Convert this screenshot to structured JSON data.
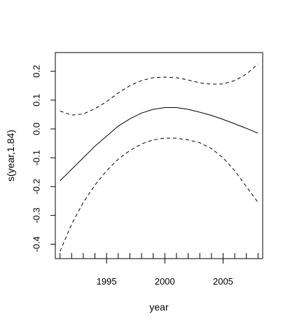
{
  "chart_data": {
    "type": "line",
    "title": "",
    "xlabel": "year",
    "ylabel": "s(year,1.84)",
    "xlim": [
      1990.6,
      2008.4
    ],
    "ylim": [
      -0.45,
      0.265
    ],
    "x_ticks": [
      1995,
      2000,
      2005
    ],
    "x_tick_labels": [
      "1995",
      "2000",
      "2005"
    ],
    "y_ticks": [
      -0.4,
      -0.3,
      -0.2,
      -0.1,
      0.0,
      0.1,
      0.2
    ],
    "y_tick_labels": [
      "-0.4",
      "-0.3",
      "-0.2",
      "-0.1",
      "0.0",
      "0.1",
      "0.2"
    ],
    "rug": [
      1991,
      1992,
      1993,
      1994,
      1995,
      1996,
      1997,
      1998,
      1999,
      2000,
      2001,
      2002,
      2003,
      2004,
      2005,
      2006,
      2007,
      2008
    ],
    "grid": false,
    "series": [
      {
        "style": "solid",
        "x": [
          1991,
          1992,
          1993,
          1994,
          1995,
          1996,
          1997,
          1998,
          1999,
          2000,
          2001,
          2002,
          2003,
          2004,
          2005,
          2006,
          2007,
          2008
        ],
        "y": [
          -0.18,
          -0.14,
          -0.1,
          -0.06,
          -0.025,
          0.01,
          0.035,
          0.055,
          0.068,
          0.074,
          0.074,
          0.068,
          0.058,
          0.047,
          0.033,
          0.018,
          0.002,
          -0.015
        ]
      },
      {
        "style": "dashed",
        "x": [
          1991,
          1992,
          1993,
          1994,
          1995,
          1996,
          1997,
          1998,
          1999,
          2000,
          2001,
          2002,
          2003,
          2004,
          2005,
          2006,
          2007,
          2008
        ],
        "y": [
          0.062,
          0.048,
          0.052,
          0.07,
          0.095,
          0.125,
          0.15,
          0.168,
          0.178,
          0.18,
          0.178,
          0.17,
          0.16,
          0.155,
          0.156,
          0.168,
          0.19,
          0.225
        ]
      },
      {
        "style": "dashed",
        "x": [
          1991,
          1992,
          1993,
          1994,
          1995,
          1996,
          1997,
          1998,
          1999,
          2000,
          2001,
          2002,
          2003,
          2004,
          2005,
          2006,
          2007,
          2008
        ],
        "y": [
          -0.425,
          -0.33,
          -0.255,
          -0.195,
          -0.145,
          -0.105,
          -0.075,
          -0.052,
          -0.038,
          -0.032,
          -0.032,
          -0.038,
          -0.048,
          -0.068,
          -0.1,
          -0.145,
          -0.2,
          -0.255
        ]
      }
    ]
  }
}
